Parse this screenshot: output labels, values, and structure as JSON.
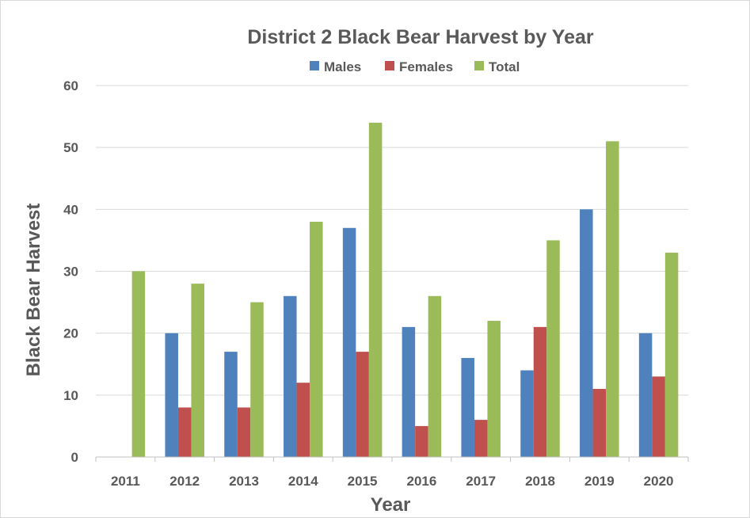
{
  "chart_data": {
    "type": "bar",
    "title": "District 2 Black Bear Harvest by Year",
    "xlabel": "Year",
    "ylabel": "Black Bear Harvest",
    "categories": [
      "2011",
      "2012",
      "2013",
      "2014",
      "2015",
      "2016",
      "2017",
      "2018",
      "2019",
      "2020"
    ],
    "series": [
      {
        "name": "Males",
        "color": "#4f81bd",
        "values": [
          0,
          20,
          17,
          26,
          37,
          21,
          16,
          14,
          40,
          20
        ]
      },
      {
        "name": "Females",
        "color": "#c0504d",
        "values": [
          0,
          8,
          8,
          12,
          17,
          5,
          6,
          21,
          11,
          13
        ]
      },
      {
        "name": "Total",
        "color": "#9bbb59",
        "values": [
          30,
          28,
          25,
          38,
          54,
          26,
          22,
          35,
          51,
          33
        ]
      }
    ],
    "ylim": [
      0,
      60
    ],
    "yticks": [
      "0",
      "10",
      "20",
      "30",
      "40",
      "50",
      "60"
    ],
    "grid": true,
    "legend_position": "top"
  }
}
